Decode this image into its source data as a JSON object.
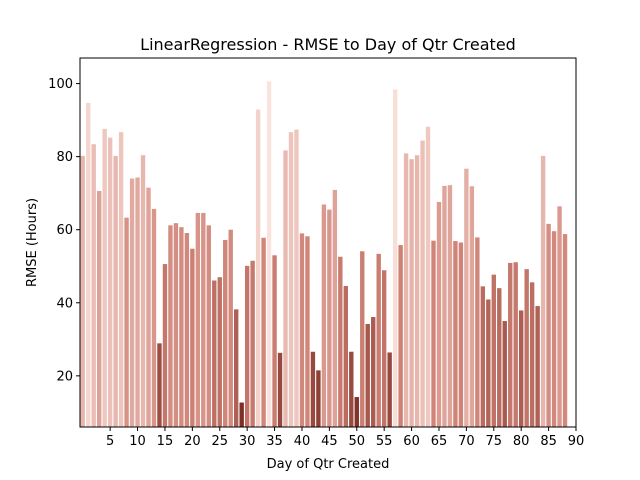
{
  "chart_data": {
    "type": "bar",
    "title": "LinearRegression - RMSE to Day of Qtr Created",
    "xlabel": "Day of Qtr Created",
    "ylabel": "RMSE (Hours)",
    "xlim": [
      -0.5,
      90
    ],
    "ylim": [
      6,
      107
    ],
    "xticks": [
      5,
      10,
      15,
      20,
      25,
      30,
      35,
      40,
      45,
      50,
      55,
      60,
      65,
      70,
      75,
      80,
      85,
      90
    ],
    "yticks": [
      20,
      40,
      60,
      80,
      100
    ],
    "grid": false,
    "legend": "none",
    "color_scale": {
      "low": "#7f2f25",
      "mid": "#d08377",
      "high": "#fbe3dd"
    },
    "x": [
      0,
      1,
      2,
      3,
      4,
      5,
      6,
      7,
      8,
      9,
      10,
      11,
      12,
      13,
      14,
      15,
      16,
      17,
      18,
      19,
      20,
      21,
      22,
      23,
      24,
      25,
      26,
      27,
      28,
      29,
      30,
      31,
      32,
      33,
      34,
      35,
      36,
      37,
      38,
      39,
      40,
      41,
      42,
      43,
      44,
      45,
      46,
      47,
      48,
      49,
      50,
      51,
      52,
      53,
      54,
      55,
      56,
      57,
      58,
      59,
      60,
      61,
      62,
      63,
      64,
      65,
      66,
      67,
      68,
      69,
      70,
      71,
      72,
      73,
      74,
      75,
      76,
      77,
      78,
      79,
      80,
      81,
      82,
      83,
      84,
      85,
      86,
      87,
      88
    ],
    "values": [
      80.2,
      94.7,
      83.4,
      70.6,
      87.6,
      85.2,
      80.2,
      86.7,
      63.3,
      74.0,
      74.3,
      80.4,
      71.5,
      65.7,
      28.9,
      50.6,
      61.2,
      61.8,
      60.7,
      59.1,
      54.8,
      64.6,
      64.6,
      61.2,
      46.1,
      47.0,
      57.2,
      60.0,
      38.2,
      12.7,
      50.1,
      51.5,
      92.9,
      57.8,
      100.6,
      53.0,
      26.3,
      81.7,
      86.7,
      87.4,
      59.0,
      58.2,
      26.6,
      21.5,
      66.9,
      65.5,
      70.9,
      52.6,
      44.6,
      26.6,
      14.2,
      54.1,
      34.2,
      36.1,
      53.4,
      48.9,
      26.4,
      98.4,
      55.8,
      80.9,
      79.3,
      80.4,
      84.4,
      88.2,
      57.0,
      67.6,
      72.0,
      72.2,
      56.9,
      56.5,
      76.7,
      71.9,
      57.9,
      44.5,
      40.9,
      47.7,
      44.0,
      35.0,
      50.9,
      51.1,
      37.9,
      49.2,
      45.6,
      39.1,
      80.2,
      61.6,
      59.6,
      66.4,
      58.8
    ]
  }
}
